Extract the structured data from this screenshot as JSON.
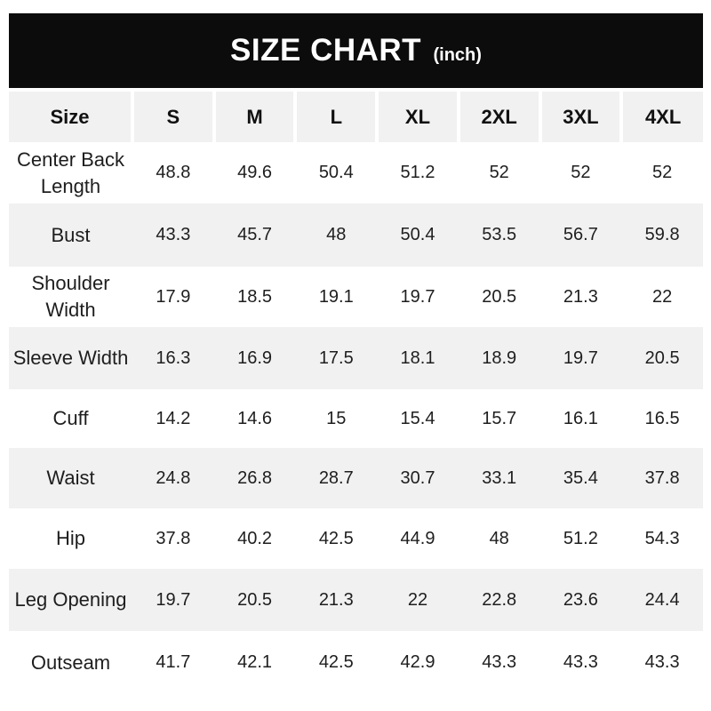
{
  "title": {
    "main": "SIZE CHART",
    "unit": "(inch)"
  },
  "table": {
    "header": [
      "Size",
      "S",
      "M",
      "L",
      "XL",
      "2XL",
      "3XL",
      "4XL"
    ]
  },
  "chart_data": {
    "type": "table",
    "title": "SIZE CHART",
    "unit_label": "(inch)",
    "categories": [
      "S",
      "M",
      "L",
      "XL",
      "2XL",
      "3XL",
      "4XL"
    ],
    "series": [
      {
        "name": "Center Back Length",
        "values": [
          48.8,
          49.6,
          50.4,
          51.2,
          52,
          52,
          52
        ]
      },
      {
        "name": "Bust",
        "values": [
          43.3,
          45.7,
          48,
          50.4,
          53.5,
          56.7,
          59.8
        ]
      },
      {
        "name": "Shoulder Width",
        "values": [
          17.9,
          18.5,
          19.1,
          19.7,
          20.5,
          21.3,
          22
        ]
      },
      {
        "name": "Sleeve Width",
        "values": [
          16.3,
          16.9,
          17.5,
          18.1,
          18.9,
          19.7,
          20.5
        ]
      },
      {
        "name": "Cuff",
        "values": [
          14.2,
          14.6,
          15,
          15.4,
          15.7,
          16.1,
          16.5
        ]
      },
      {
        "name": "Waist",
        "values": [
          24.8,
          26.8,
          28.7,
          30.7,
          33.1,
          35.4,
          37.8
        ]
      },
      {
        "name": "Hip",
        "values": [
          37.8,
          40.2,
          42.5,
          44.9,
          48,
          51.2,
          54.3
        ]
      },
      {
        "name": "Leg Opening",
        "values": [
          19.7,
          20.5,
          21.3,
          22,
          22.8,
          23.6,
          24.4
        ]
      },
      {
        "name": "Outseam",
        "values": [
          41.7,
          42.1,
          42.5,
          42.9,
          43.3,
          43.3,
          43.3
        ]
      }
    ]
  },
  "colors": {
    "title_bar_bg": "#0c0c0c",
    "title_text": "#ffffff",
    "stripe_bg": "#f1f1f1",
    "row_bg": "#ffffff",
    "text": "#1e1e1e"
  }
}
